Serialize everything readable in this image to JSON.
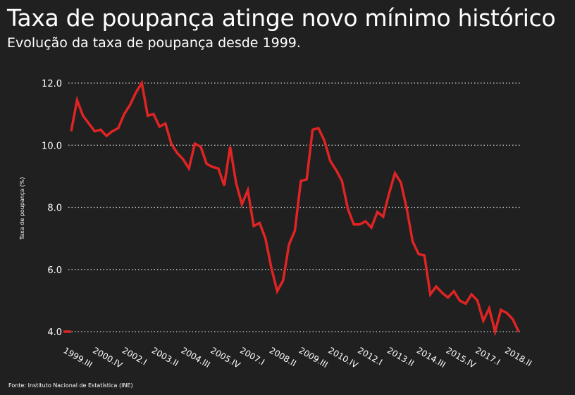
{
  "header": {
    "title": "Taxa de poupança atinge novo mínimo histórico",
    "subtitle": "Evolução da taxa de poupança desde 1999."
  },
  "footer": {
    "source": "Fonte: Instituto Nacional de Estatística (INE)"
  },
  "colors": {
    "background": "#202020",
    "line": "#e02424",
    "text": "#ffffff",
    "grid": "#cfcfcf"
  },
  "chart_data": {
    "type": "line",
    "title": "Taxa de poupança atinge novo mínimo histórico",
    "subtitle": "Evolução da taxa de poupança desde 1999.",
    "xlabel": "",
    "ylabel": "Taxa de poupança (%)",
    "ylim": [
      4.0,
      12.0
    ],
    "yticks": [
      "4.0",
      "6.0",
      "8.0",
      "10.0",
      "12.0"
    ],
    "grid": "horizontal dotted",
    "legend": "none",
    "xtick_labels": [
      "1999.III",
      "2000.IV",
      "2002.I",
      "2003.II",
      "2004.III",
      "2005.IV",
      "2007.I",
      "2008.II",
      "2009.III",
      "2010.IV",
      "2012.I",
      "2013.II",
      "2014.III",
      "2015.IV",
      "2017.I",
      "2018.II"
    ],
    "series": [
      {
        "values": [
          10.45,
          11.45,
          10.95,
          10.7,
          10.45,
          10.5,
          10.3,
          10.45,
          10.55,
          11.0,
          11.3,
          11.7,
          12.0,
          10.95,
          11.0,
          10.6,
          10.7,
          10.05,
          9.75,
          9.55,
          9.25,
          10.05,
          9.95,
          9.4,
          9.3,
          9.25,
          8.7,
          9.95,
          8.8,
          8.1,
          8.55,
          7.4,
          7.5,
          7.0,
          6.05,
          5.3,
          5.65,
          6.8,
          7.25,
          8.85,
          8.9,
          10.5,
          10.55,
          10.15,
          9.5,
          9.2,
          8.85,
          7.95,
          7.45,
          7.45,
          7.55,
          7.35,
          7.85,
          7.7,
          8.45,
          9.1,
          8.8,
          7.95,
          6.9,
          6.5,
          6.45,
          5.2,
          5.45,
          5.25,
          5.1,
          5.3,
          5.0,
          4.9,
          5.2,
          5.0,
          4.35,
          4.75,
          4.0,
          4.7,
          4.6,
          4.4,
          4.0
        ]
      }
    ]
  }
}
